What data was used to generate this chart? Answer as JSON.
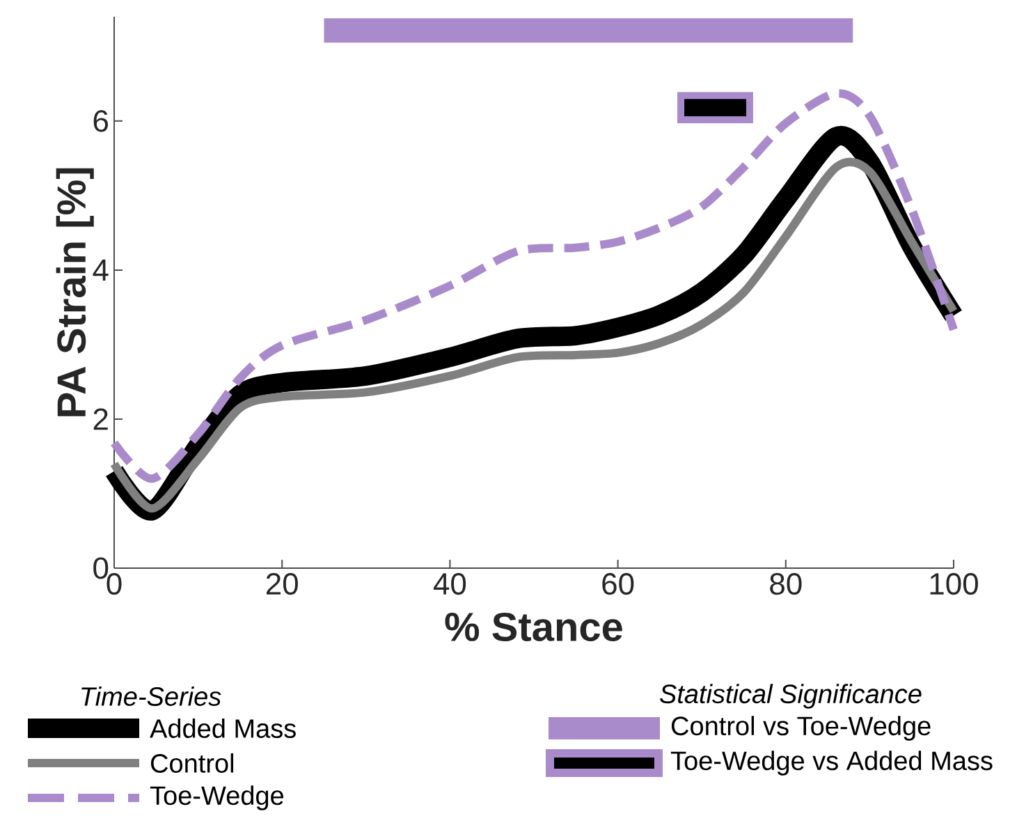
{
  "chart_data": {
    "type": "line",
    "xlabel": "% Stance",
    "ylabel": "PA Strain [%]",
    "x": [
      0,
      4.5,
      10,
      15,
      20,
      30,
      40,
      48,
      55,
      60,
      65,
      70,
      75,
      80,
      86,
      90,
      95,
      100
    ],
    "series": [
      {
        "name": "Added Mass",
        "color": "#000000",
        "line_style": "solid",
        "values": [
          1.3,
          0.77,
          1.64,
          2.33,
          2.49,
          2.58,
          2.83,
          3.08,
          3.12,
          3.23,
          3.4,
          3.7,
          4.2,
          4.95,
          5.79,
          5.45,
          4.32,
          3.39
        ]
      },
      {
        "name": "Control",
        "color": "#808080",
        "line_style": "solid",
        "values": [
          1.4,
          0.8,
          1.46,
          2.15,
          2.3,
          2.36,
          2.58,
          2.83,
          2.86,
          2.89,
          3.02,
          3.27,
          3.7,
          4.45,
          5.38,
          5.32,
          4.38,
          3.45
        ]
      },
      {
        "name": "Toe-Wedge",
        "color": "#a98bcc",
        "line_style": "dashed",
        "values": [
          1.68,
          1.2,
          1.8,
          2.55,
          2.99,
          3.33,
          3.79,
          4.25,
          4.3,
          4.38,
          4.57,
          4.85,
          5.38,
          5.97,
          6.37,
          6.07,
          4.82,
          3.2
        ]
      }
    ],
    "bands": [
      {
        "axis": "x",
        "from": 25,
        "to": 88,
        "label": "Control vs Toe-Wedge",
        "color": "#a98bcc"
      },
      {
        "axis": "x",
        "from": 67.5,
        "to": 75.7,
        "label": "Toe-Wedge vs Added Mass",
        "color": "#000000"
      }
    ],
    "legend_title": "Time-Series",
    "annotations": [
      "Statistical Significance"
    ],
    "legend": "bottom",
    "xlim": [
      0,
      100
    ],
    "ylim": [
      0,
      7.4
    ],
    "xticks": [
      0,
      20,
      40,
      60,
      80,
      100
    ],
    "yticks": [
      0,
      2,
      4,
      6
    ],
    "grid": false
  }
}
